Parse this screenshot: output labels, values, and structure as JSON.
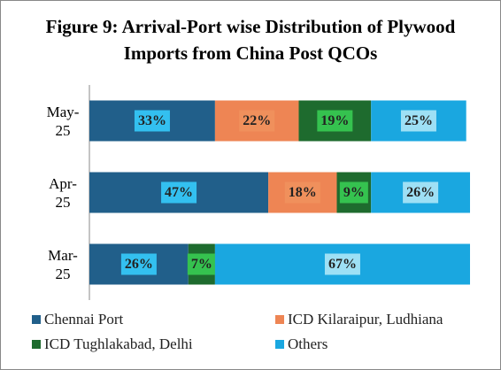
{
  "chart_data": {
    "type": "stacked-bar-horizontal",
    "title": "Figure 9: Arrival-Port wise Distribution of Plywood Imports from China Post QCOs",
    "categories": [
      "May-25",
      "Apr-25",
      "Mar-25"
    ],
    "xlim": [
      0,
      100
    ],
    "series": [
      {
        "name": "Chennai Port",
        "color": "#215f8a",
        "values": [
          33,
          47,
          26
        ],
        "value_labels": [
          "33%",
          "47%",
          "26%"
        ]
      },
      {
        "name": "ICD Kilaraipur, Ludhiana",
        "color": "#ee8554",
        "values": [
          22,
          18,
          0
        ],
        "value_labels": [
          "22%",
          "18%",
          null
        ]
      },
      {
        "name": "ICD Tughlakabad, Delhi",
        "color": "#1e6b2e",
        "values": [
          19,
          9,
          7
        ],
        "value_labels": [
          "19%",
          "9%",
          "7%"
        ]
      },
      {
        "name": "Others",
        "color": "#1aa7e0",
        "values": [
          25,
          26,
          67
        ],
        "value_labels": [
          "25%",
          "26%",
          "67%"
        ]
      }
    ],
    "legend": "bottom"
  }
}
